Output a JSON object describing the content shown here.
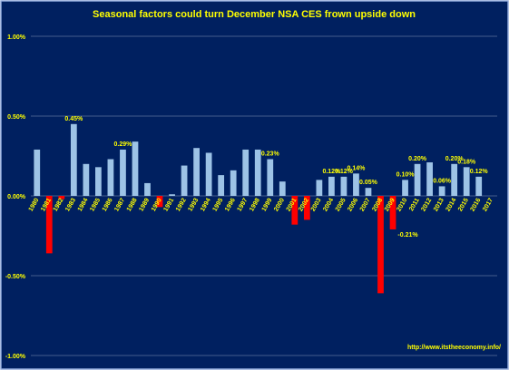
{
  "colors": {
    "background": "#002060",
    "frame": "#8ea9db",
    "text": "#ffff00",
    "grid": "#5a6f9c",
    "positive_bar": "#9dc3e6",
    "negative_bar": "#ff0000"
  },
  "footer_text": "http://www.itstheeconomy.info/",
  "chart_data": {
    "type": "bar",
    "title": "Seasonal factors could turn December NSA CES frown upside down",
    "xlabel": "",
    "ylabel": "",
    "ylim": [
      -1.0,
      1.0
    ],
    "yticks": [
      {
        "value": 1.0,
        "label": "1.00%"
      },
      {
        "value": 0.5,
        "label": "0.50%"
      },
      {
        "value": 0.0,
        "label": "0.00%"
      },
      {
        "value": -0.5,
        "label": "-0.50%"
      },
      {
        "value": -1.0,
        "label": "-1.00%"
      }
    ],
    "grid": true,
    "categories": [
      "1980",
      "1981",
      "1982",
      "1983",
      "1984",
      "1985",
      "1986",
      "1987",
      "1988",
      "1989",
      "1990",
      "1991",
      "1992",
      "1993",
      "1994",
      "1995",
      "1996",
      "1997",
      "1998",
      "1999",
      "2000",
      "2001",
      "2002",
      "2003",
      "2004",
      "2005",
      "2006",
      "2007",
      "2008",
      "2009",
      "2010",
      "2011",
      "2012",
      "2013",
      "2014",
      "2015",
      "2016",
      "2017"
    ],
    "values": [
      0.29,
      -0.36,
      -0.02,
      0.45,
      0.2,
      0.18,
      0.23,
      0.29,
      0.34,
      0.08,
      -0.07,
      0.01,
      0.19,
      0.3,
      0.27,
      0.13,
      0.16,
      0.29,
      0.29,
      0.23,
      0.09,
      -0.18,
      -0.15,
      0.1,
      0.12,
      0.12,
      0.14,
      0.05,
      -0.61,
      -0.21,
      0.1,
      0.2,
      0.21,
      0.06,
      0.2,
      0.18,
      0.12,
      null
    ],
    "data_labels": [
      {
        "category": "1983",
        "text": "0.45%"
      },
      {
        "category": "1987",
        "text": "0.29%"
      },
      {
        "category": "1999",
        "text": "0.23%"
      },
      {
        "category": "2004",
        "text": "0.12%"
      },
      {
        "category": "2005",
        "text": "0.12%"
      },
      {
        "category": "2006",
        "text": "0.14%"
      },
      {
        "category": "2007",
        "text": "0.05%"
      },
      {
        "category": "2009",
        "text": "-0.21%"
      },
      {
        "category": "2010",
        "text": "0.10%"
      },
      {
        "category": "2011",
        "text": "0.20%"
      },
      {
        "category": "2013",
        "text": "0.06%"
      },
      {
        "category": "2014",
        "text": "0.20%"
      },
      {
        "category": "2015",
        "text": "0.18%"
      },
      {
        "category": "2016",
        "text": "0.12%"
      }
    ]
  }
}
